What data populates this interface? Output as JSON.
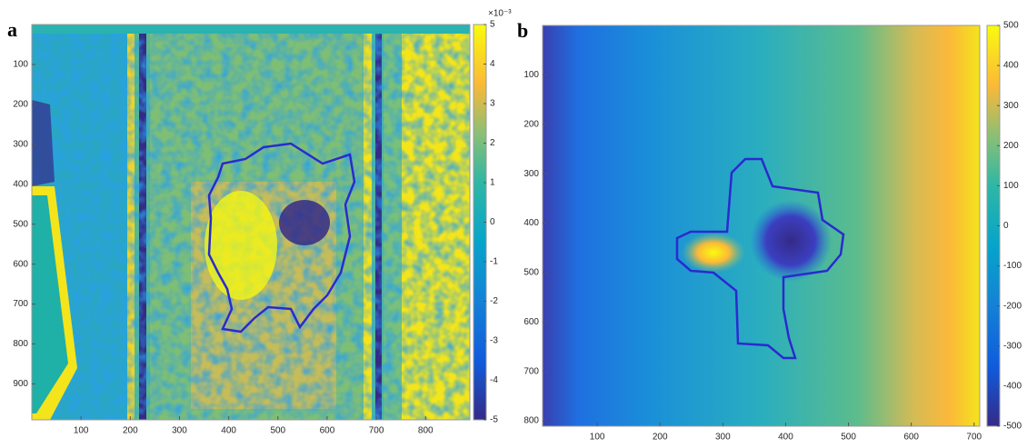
{
  "chart_data": [
    {
      "type": "heatmap",
      "label": "a",
      "xlim": [
        0,
        890
      ],
      "ylim": [
        0,
        990
      ],
      "xticks": [
        100,
        200,
        300,
        400,
        500,
        600,
        700,
        800
      ],
      "yticks": [
        100,
        200,
        300,
        400,
        500,
        600,
        700,
        800,
        900
      ],
      "colorbar": {
        "clim": [
          -5,
          5
        ],
        "ticks": [
          -5,
          -4,
          -3,
          -2,
          -1,
          0,
          1,
          2,
          3,
          4,
          5
        ],
        "exponent": "×10⁻³"
      }
    },
    {
      "type": "heatmap",
      "label": "b",
      "xlim": [
        13,
        709
      ],
      "ylim": [
        0,
        811
      ],
      "xticks": [
        100,
        200,
        300,
        400,
        500,
        600,
        700
      ],
      "yticks": [
        100,
        200,
        300,
        400,
        500,
        600,
        700,
        800
      ],
      "colorbar": {
        "clim": [
          -500,
          500
        ],
        "ticks": [
          -500,
          -400,
          -300,
          -200,
          -100,
          0,
          100,
          200,
          300,
          400,
          500
        ]
      }
    }
  ]
}
